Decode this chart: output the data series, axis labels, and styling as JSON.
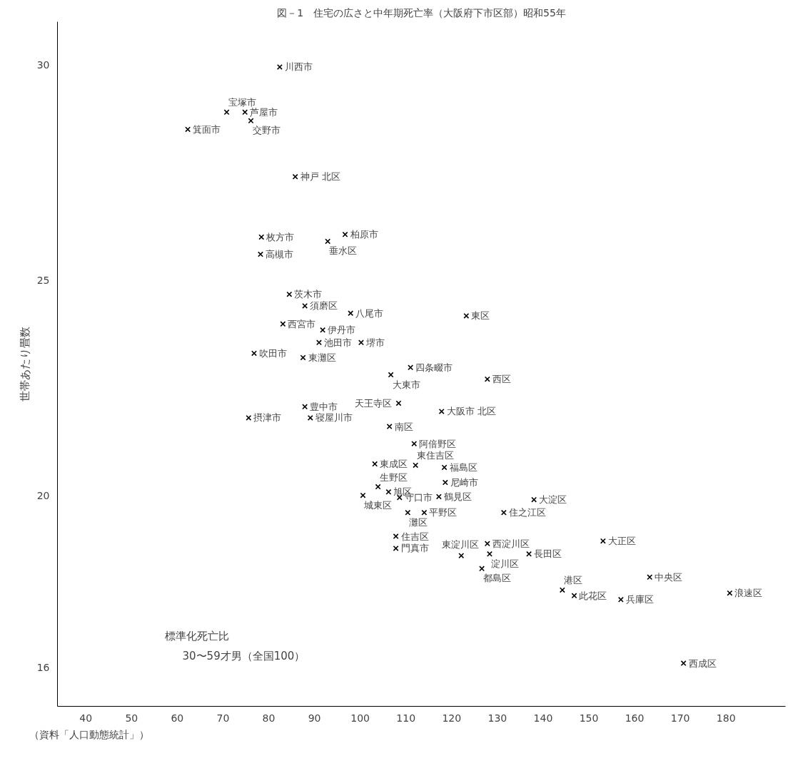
{
  "chart_data": {
    "type": "scatter",
    "title": "図－1　住宅の広さと中年期死亡率（大阪府下市区部）昭和55年",
    "xlabel": "標準化死亡比\n30〜59才男（全国100）",
    "ylabel": "世帯あたり畳数",
    "x": [
      82.4,
      70.8,
      74.8,
      76.1,
      62.3,
      85.8,
      78.4,
      78.2,
      92.9,
      96.7,
      84.5,
      87.9,
      97.9,
      123.2,
      83.1,
      91.8,
      91.0,
      100.2,
      87.5,
      76.8,
      111.0,
      106.7,
      127.8,
      87.9,
      75.6,
      89.1,
      108.4,
      117.8,
      106.4,
      111.8,
      103.2,
      112.1,
      118.4,
      118.6,
      103.9,
      100.6,
      106.2,
      108.6,
      117.2,
      138.0,
      131.4,
      110.4,
      114.0,
      107.8,
      107.8,
      127.8,
      128.3,
      136.9,
      122.1,
      126.6,
      153.1,
      144.2,
      146.8,
      157.0,
      163.3,
      180.8,
      170.7
    ],
    "series": [
      {
        "color": "#000000",
        "values": [
          29.95,
          28.9,
          28.9,
          28.7,
          28.5,
          27.4,
          26.0,
          25.6,
          25.9,
          26.06,
          24.67,
          24.4,
          24.23,
          24.17,
          23.98,
          23.84,
          23.55,
          23.55,
          23.2,
          23.3,
          22.97,
          22.8,
          22.7,
          22.06,
          21.8,
          21.8,
          22.14,
          21.95,
          21.6,
          21.2,
          20.73,
          20.7,
          20.65,
          20.3,
          20.2,
          20.0,
          20.08,
          19.95,
          19.97,
          19.9,
          19.6,
          19.6,
          19.6,
          19.05,
          18.77,
          18.88,
          18.64,
          18.64,
          18.6,
          18.3,
          18.94,
          17.8,
          17.67,
          17.58,
          18.1,
          17.73,
          16.1
        ]
      }
    ],
    "annotations": [
      {
        "text": "川西市",
        "x": 82.4,
        "y": 29.95
      },
      {
        "text": "宝塚市",
        "x": 70.8,
        "y": 28.9
      },
      {
        "text": "芦屋市",
        "x": 74.8,
        "y": 28.9
      },
      {
        "text": "交野市",
        "x": 76.1,
        "y": 28.7
      },
      {
        "text": "箕面市",
        "x": 62.3,
        "y": 28.5
      },
      {
        "text": "神戸 北区",
        "x": 85.8,
        "y": 27.4
      },
      {
        "text": "枚方市",
        "x": 78.4,
        "y": 26.0
      },
      {
        "text": "高槻市",
        "x": 78.2,
        "y": 25.6
      },
      {
        "text": "垂水区",
        "x": 92.9,
        "y": 25.9
      },
      {
        "text": "柏原市",
        "x": 96.7,
        "y": 26.06
      },
      {
        "text": "茨木市",
        "x": 84.5,
        "y": 24.67
      },
      {
        "text": "須磨区",
        "x": 87.9,
        "y": 24.4
      },
      {
        "text": "八尾市",
        "x": 97.9,
        "y": 24.23
      },
      {
        "text": "東区",
        "x": 123.2,
        "y": 24.17
      },
      {
        "text": "西宮市",
        "x": 83.1,
        "y": 23.98
      },
      {
        "text": "伊丹市",
        "x": 91.8,
        "y": 23.84
      },
      {
        "text": "池田市",
        "x": 91.0,
        "y": 23.55
      },
      {
        "text": "堺市",
        "x": 100.2,
        "y": 23.55
      },
      {
        "text": "東灘区",
        "x": 87.5,
        "y": 23.2
      },
      {
        "text": "吹田市",
        "x": 76.8,
        "y": 23.3
      },
      {
        "text": "四条畷市",
        "x": 111.0,
        "y": 22.97
      },
      {
        "text": "大東市",
        "x": 106.7,
        "y": 22.8
      },
      {
        "text": "西区",
        "x": 127.8,
        "y": 22.7
      },
      {
        "text": "豊中市",
        "x": 87.9,
        "y": 22.06
      },
      {
        "text": "摂津市",
        "x": 75.6,
        "y": 21.8
      },
      {
        "text": "寝屋川市",
        "x": 89.1,
        "y": 21.8
      },
      {
        "text": "天王寺区",
        "x": 108.4,
        "y": 22.14
      },
      {
        "text": "大阪市 北区",
        "x": 117.8,
        "y": 21.95
      },
      {
        "text": "南区",
        "x": 106.4,
        "y": 21.6
      },
      {
        "text": "阿倍野区",
        "x": 111.8,
        "y": 21.2
      },
      {
        "text": "東成区",
        "x": 103.2,
        "y": 20.73
      },
      {
        "text": "東住吉区",
        "x": 112.1,
        "y": 20.7
      },
      {
        "text": "福島区",
        "x": 118.4,
        "y": 20.65
      },
      {
        "text": "尼崎市",
        "x": 118.6,
        "y": 20.3
      },
      {
        "text": "生野区",
        "x": 103.9,
        "y": 20.2
      },
      {
        "text": "城東区",
        "x": 100.6,
        "y": 20.0
      },
      {
        "text": "旭区",
        "x": 106.2,
        "y": 20.08
      },
      {
        "text": "守口市",
        "x": 108.6,
        "y": 19.95
      },
      {
        "text": "鶴見区",
        "x": 117.2,
        "y": 19.97
      },
      {
        "text": "大淀区",
        "x": 138.0,
        "y": 19.9
      },
      {
        "text": "住之江区",
        "x": 131.4,
        "y": 19.6
      },
      {
        "text": "灘区",
        "x": 110.4,
        "y": 19.6
      },
      {
        "text": "平野区",
        "x": 114.0,
        "y": 19.6
      },
      {
        "text": "住吉区",
        "x": 107.8,
        "y": 19.05
      },
      {
        "text": "門真市",
        "x": 107.8,
        "y": 18.77
      },
      {
        "text": "西淀川区",
        "x": 127.8,
        "y": 18.88
      },
      {
        "text": "淀川区",
        "x": 128.3,
        "y": 18.64
      },
      {
        "text": "長田区",
        "x": 136.9,
        "y": 18.64
      },
      {
        "text": "東淀川区",
        "x": 122.1,
        "y": 18.6
      },
      {
        "text": "都島区",
        "x": 126.6,
        "y": 18.3
      },
      {
        "text": "大正区",
        "x": 153.1,
        "y": 18.94
      },
      {
        "text": "港区",
        "x": 144.2,
        "y": 17.8
      },
      {
        "text": "此花区",
        "x": 146.8,
        "y": 17.67
      },
      {
        "text": "兵庫区",
        "x": 157.0,
        "y": 17.58
      },
      {
        "text": "中央区",
        "x": 163.3,
        "y": 18.1
      },
      {
        "text": "浪速区",
        "x": 180.8,
        "y": 17.73
      },
      {
        "text": "西成区",
        "x": 170.7,
        "y": 16.1
      },
      "（資料「人口動態統計」）"
    ],
    "xlim": [
      33.8,
      193
    ],
    "ylim": [
      15.1,
      31
    ],
    "xticks": [
      40,
      50,
      60,
      70,
      80,
      90,
      100,
      110,
      120,
      130,
      140,
      150,
      160,
      170,
      180
    ],
    "yticks": [
      16,
      20,
      25,
      30
    ],
    "grid": false,
    "marker": "cross"
  }
}
